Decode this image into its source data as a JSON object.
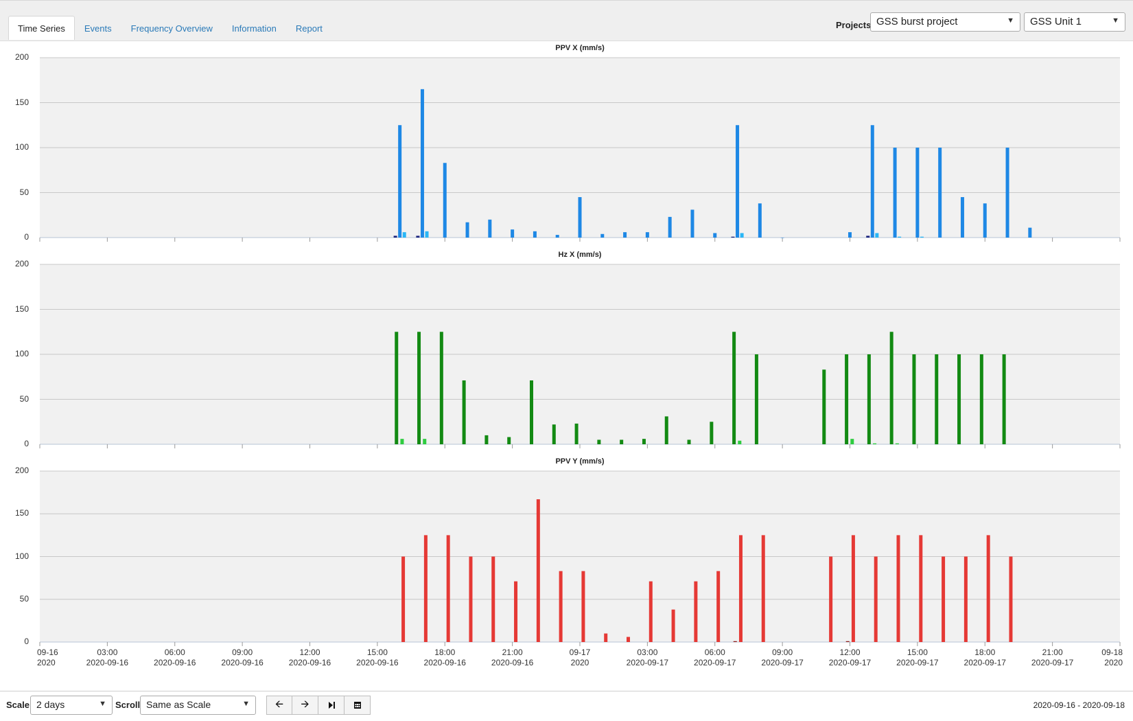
{
  "tabs": [
    {
      "label": "Time Series",
      "active": true
    },
    {
      "label": "Events"
    },
    {
      "label": "Frequency Overview"
    },
    {
      "label": "Information"
    },
    {
      "label": "Report"
    }
  ],
  "projects_label": "Projects",
  "project_select": "GSS burst project",
  "unit_select": "GSS Unit 1",
  "footer": {
    "scale_label": "Scale",
    "scale_value": "2 days",
    "scroll_label": "Scroll",
    "scroll_value": "Same as Scale",
    "buttons": [
      "arrow-left-icon",
      "arrow-right-icon",
      "skip-end-icon",
      "calendar-icon"
    ],
    "date_range": "2020-09-16 - 2020-09-18"
  },
  "x_ticks": [
    [
      "09-16",
      "2020"
    ],
    [
      "03:00",
      "2020-09-16"
    ],
    [
      "06:00",
      "2020-09-16"
    ],
    [
      "09:00",
      "2020-09-16"
    ],
    [
      "12:00",
      "2020-09-16"
    ],
    [
      "15:00",
      "2020-09-16"
    ],
    [
      "18:00",
      "2020-09-16"
    ],
    [
      "21:00",
      "2020-09-16"
    ],
    [
      "09-17",
      "2020"
    ],
    [
      "03:00",
      "2020-09-17"
    ],
    [
      "06:00",
      "2020-09-17"
    ],
    [
      "09:00",
      "2020-09-17"
    ],
    [
      "12:00",
      "2020-09-17"
    ],
    [
      "15:00",
      "2020-09-17"
    ],
    [
      "18:00",
      "2020-09-17"
    ],
    [
      "21:00",
      "2020-09-17"
    ],
    [
      "09-18",
      "2020"
    ]
  ],
  "colors": {
    "ppvx": "#1e88e5",
    "ppvx_light": "#29b6f6",
    "ppvx_dark": "#1a237e",
    "hzx": "#138a13",
    "hzx_light": "#2ecc40",
    "ppvy": "#e53935",
    "ppvy_dark": "#8b1a1a"
  },
  "chart_data": [
    {
      "type": "bar",
      "title": "PPV X (mm/s)",
      "x_unit": "hours since 2020-09-16 00:00",
      "xlim": [
        0,
        48
      ],
      "ylim": [
        0,
        200
      ],
      "yticks": [
        0,
        50,
        100,
        150,
        200
      ],
      "series": [
        {
          "name": "main",
          "color_key": "ppvx",
          "x": [
            16.0,
            17.0,
            18.0,
            19.0,
            20.0,
            21.0,
            22.0,
            23.0,
            24.0,
            25.0,
            26.0,
            27.0,
            28.0,
            29.0,
            30.0,
            31.0,
            32.0,
            33.0,
            36.0,
            37.0,
            38.0,
            39.0,
            40.0,
            41.0,
            42.0,
            43.0,
            44.0
          ],
          "values": [
            125,
            165,
            83,
            17,
            20,
            9,
            7,
            3,
            45,
            4,
            6,
            6,
            23,
            31,
            5,
            125,
            38,
            0,
            6,
            125,
            100,
            100,
            100,
            45,
            38,
            100,
            11
          ]
        },
        {
          "name": "light",
          "color_key": "ppvx_light",
          "x": [
            16.2,
            17.2,
            31.2,
            37.2,
            38.2,
            39.2
          ],
          "values": [
            6,
            7,
            5,
            5,
            1,
            1
          ]
        },
        {
          "name": "dark",
          "color_key": "ppvx_dark",
          "x": [
            15.8,
            16.8,
            30.8,
            36.8
          ],
          "values": [
            2,
            2,
            1,
            2
          ]
        }
      ]
    },
    {
      "type": "bar",
      "title": "Hz X (mm/s)",
      "x_unit": "hours since 2020-09-16 00:00",
      "xlim": [
        0,
        48
      ],
      "ylim": [
        0,
        200
      ],
      "yticks": [
        0,
        50,
        100,
        150,
        200
      ],
      "series": [
        {
          "name": "main",
          "color_key": "hzx",
          "x": [
            15.85,
            16.85,
            17.85,
            18.85,
            19.85,
            20.85,
            21.85,
            22.85,
            23.85,
            24.85,
            25.85,
            26.85,
            27.85,
            28.85,
            29.85,
            30.85,
            31.85,
            34.85,
            35.85,
            36.85,
            37.85,
            38.85,
            39.85,
            40.85,
            41.85,
            42.85
          ],
          "values": [
            125,
            125,
            125,
            71,
            10,
            8,
            71,
            22,
            23,
            5,
            5,
            6,
            31,
            5,
            25,
            125,
            100,
            83,
            100,
            100,
            125,
            100,
            100,
            100,
            100,
            100
          ]
        },
        {
          "name": "light",
          "color_key": "hzx_light",
          "x": [
            16.1,
            17.1,
            31.1,
            36.1,
            37.1,
            38.1
          ],
          "values": [
            6,
            6,
            4,
            6,
            1,
            1
          ]
        }
      ]
    },
    {
      "type": "bar",
      "title": "PPV Y (mm/s)",
      "x_unit": "hours since 2020-09-16 00:00",
      "xlim": [
        0,
        48
      ],
      "ylim": [
        0,
        200
      ],
      "yticks": [
        0,
        50,
        100,
        150,
        200
      ],
      "series": [
        {
          "name": "main",
          "color_key": "ppvy",
          "x": [
            16.15,
            17.15,
            18.15,
            19.15,
            20.15,
            21.15,
            22.15,
            23.15,
            24.15,
            25.15,
            26.15,
            27.15,
            28.15,
            29.15,
            30.15,
            31.15,
            32.15,
            35.15,
            36.15,
            37.15,
            38.15,
            39.15,
            40.15,
            41.15,
            42.15,
            43.15
          ],
          "values": [
            100,
            125,
            125,
            100,
            100,
            71,
            167,
            83,
            83,
            10,
            6,
            71,
            38,
            71,
            83,
            125,
            125,
            100,
            125,
            100,
            125,
            125,
            100,
            100,
            125,
            100
          ]
        },
        {
          "name": "dark",
          "color_key": "ppvy_dark",
          "x": [
            30.9,
            35.9
          ],
          "values": [
            1,
            1
          ]
        }
      ]
    }
  ]
}
